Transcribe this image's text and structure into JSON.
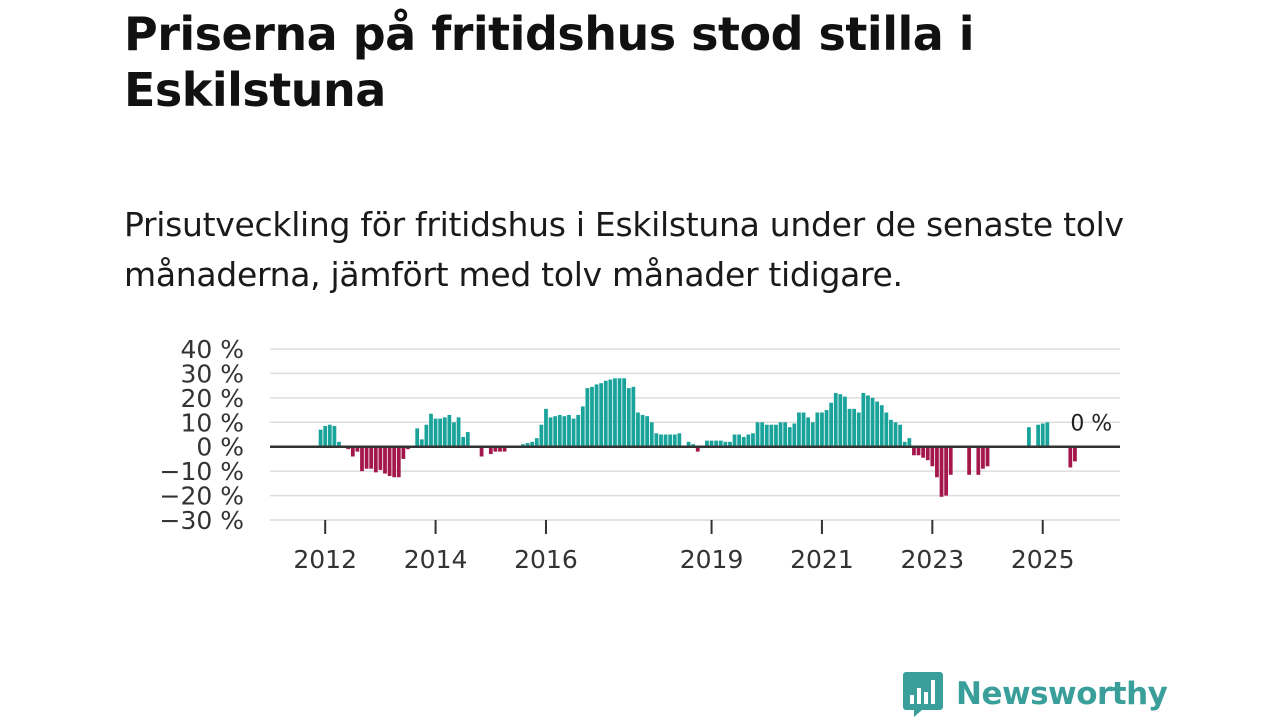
{
  "title": "Priserna på fritidshus stod stilla i Eskilstuna",
  "subtitle": "Prisutveckling för fritidshus i Eskilstuna under de senaste tolv månaderna, jämfört med tolv månader tidigare.",
  "brand": {
    "name": "Newsworthy",
    "color": "#3a9f9a"
  },
  "colors": {
    "positive": "#1aa39a",
    "negative": "#a3174a",
    "grid": "#dddddd",
    "zero_line": "#333333"
  },
  "chart_data": {
    "type": "bar",
    "title": "",
    "xlabel": "",
    "ylabel": "",
    "ylim": [
      -30,
      40
    ],
    "y_ticks": [
      40,
      30,
      20,
      10,
      0,
      -10,
      -20,
      -30
    ],
    "y_tick_labels": [
      "40 %",
      "30 %",
      "20 %",
      "10 %",
      "0 %",
      "−10 %",
      "−20 %",
      "−30 %"
    ],
    "x_ticks": [
      2012,
      2014,
      2016,
      2019,
      2021,
      2023,
      2025
    ],
    "x_tick_labels": [
      "2012",
      "2014",
      "2016",
      "2019",
      "2021",
      "2023",
      "2025"
    ],
    "x_start": 2011.0,
    "x_end": 2026.4,
    "series_start": 2011.9167,
    "step_months": 1,
    "annotation": {
      "text": "0 %",
      "x": 2025.5,
      "y": 10
    },
    "values": [
      7,
      8.5,
      9,
      8.5,
      2,
      0,
      -1,
      -4,
      -2,
      -10,
      -9,
      -9,
      -10.5,
      -9.5,
      -11,
      -12,
      -12.5,
      -12.5,
      -5,
      -1,
      0,
      7.5,
      3,
      9,
      13.5,
      11.5,
      11.5,
      12,
      13,
      10,
      12,
      4,
      6,
      null,
      null,
      -4,
      0.5,
      -3,
      -2,
      -2,
      -2,
      null,
      null,
      null,
      1,
      1.5,
      2,
      3.5,
      9,
      15.5,
      12,
      12.5,
      13,
      12.5,
      13,
      11.5,
      13,
      16.5,
      24,
      24.5,
      25.5,
      26,
      27,
      27.5,
      28,
      28,
      28,
      24,
      24.5,
      14,
      13,
      12.5,
      10,
      5.5,
      5,
      5,
      5,
      5,
      5.5,
      null,
      2,
      1,
      -2,
      null,
      2.5,
      2.5,
      2.5,
      2.5,
      2,
      2,
      5,
      5,
      4,
      5,
      5.5,
      10,
      10,
      9,
      9,
      9,
      10,
      10,
      8,
      9.5,
      14,
      14,
      12,
      10,
      14,
      14,
      15,
      18,
      22,
      21.5,
      20.5,
      15.5,
      15.5,
      14,
      22,
      21,
      20,
      18.5,
      17,
      14,
      11,
      10,
      9,
      2,
      3.5,
      -3.5,
      -3.5,
      -4.5,
      -5.5,
      -8,
      -12.5,
      -20.5,
      -20,
      -11.5,
      null,
      null,
      null,
      -11.5,
      null,
      -11.5,
      -9,
      -8,
      null,
      null,
      null,
      null,
      null,
      null,
      null,
      null,
      8,
      null,
      9,
      9.5,
      10,
      null,
      null,
      null,
      null,
      -8.5,
      -6,
      null,
      null,
      null,
      null,
      null,
      null,
      null
    ]
  }
}
